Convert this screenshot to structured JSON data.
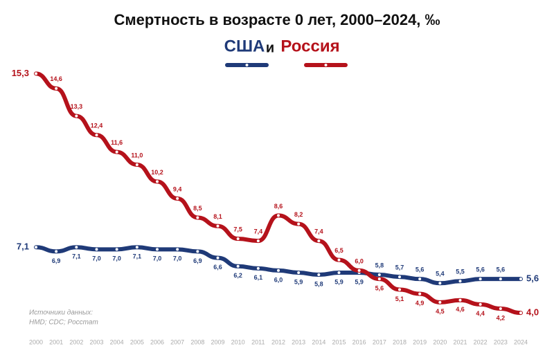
{
  "chart_data": {
    "type": "line",
    "title": "Смертность в возрасте 0 лет, 2000–2024, ‰",
    "legend_joiner": "и",
    "source": [
      "Источники данных:",
      "HMD; CDC; Росстат"
    ],
    "categories": [
      "2000",
      "2001",
      "2002",
      "2003",
      "2004",
      "2005",
      "2006",
      "2007",
      "2008",
      "2009",
      "2010",
      "2011",
      "2012",
      "2013",
      "2014",
      "2015",
      "2016",
      "2017",
      "2018",
      "2019",
      "2020",
      "2021",
      "2022",
      "2023",
      "2024"
    ],
    "ylim": [
      2.5,
      16
    ],
    "series": [
      {
        "name": "США",
        "color": "#1f3a78",
        "values": [
          7.1,
          6.9,
          7.1,
          7.0,
          7.0,
          7.1,
          7.0,
          7.0,
          6.9,
          6.6,
          6.2,
          6.1,
          6.0,
          5.9,
          5.8,
          5.9,
          5.9,
          5.8,
          5.7,
          5.6,
          5.4,
          5.5,
          5.6,
          5.6,
          5.6
        ],
        "value_labels": [
          "7,1",
          "6,9",
          "7,1",
          "7,0",
          "7,0",
          "7,1",
          "7,0",
          "7,0",
          "6,9",
          "6,6",
          "6,2",
          "6,1",
          "6,0",
          "5,9",
          "5,8",
          "5,9",
          "5,9",
          "5,8",
          "5,7",
          "5,6",
          "5,4",
          "5,5",
          "5,6",
          "5,6",
          "5,6"
        ]
      },
      {
        "name": "Россия",
        "color": "#b5121b",
        "values": [
          15.3,
          14.6,
          13.3,
          12.4,
          11.6,
          11.0,
          10.2,
          9.4,
          8.5,
          8.1,
          7.5,
          7.4,
          8.6,
          8.2,
          7.4,
          6.5,
          6.0,
          5.6,
          5.1,
          4.9,
          4.5,
          4.6,
          4.4,
          4.2,
          4.0
        ],
        "value_labels": [
          "15,3",
          "14,6",
          "13,3",
          "12,4",
          "11,6",
          "11,0",
          "10,2",
          "9,4",
          "8,5",
          "8,1",
          "7,5",
          "7,4",
          "8,6",
          "8,2",
          "7,4",
          "6,5",
          "6,0",
          "5,6",
          "5,1",
          "4,9",
          "4,5",
          "4,6",
          "4,4",
          "4,2",
          "4,0"
        ]
      }
    ]
  }
}
